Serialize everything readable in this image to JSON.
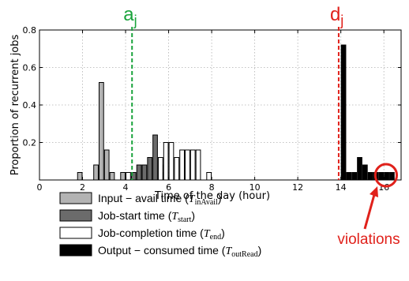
{
  "chart_data": {
    "type": "bar",
    "xlabel": "Time of the day (hour)",
    "ylabel": "Proportion of recurrent jobs",
    "xlim": [
      0,
      16.8
    ],
    "ylim": [
      0,
      0.8
    ],
    "xticks": [
      0,
      2,
      4,
      6,
      8,
      10,
      12,
      14,
      16
    ],
    "yticks": [
      0.2,
      0.4,
      0.6,
      0.8
    ],
    "grid": true,
    "bin_width": 0.25,
    "series": [
      {
        "name": "Input − avail time (T_inAvail)",
        "color": "#b3b3b3",
        "x": [
          1.875,
          2.625,
          2.875,
          3.125,
          3.375,
          3.875
        ],
        "values": [
          0.04,
          0.08,
          0.52,
          0.16,
          0.04,
          0.04
        ]
      },
      {
        "name": "Job-start time (T_start)",
        "color": "#6b6b6b",
        "x": [
          4.375,
          4.625,
          4.875,
          5.125,
          5.375,
          5.625,
          5.875
        ],
        "values": [
          0.04,
          0.08,
          0.08,
          0.12,
          0.24,
          0.08,
          0.04
        ]
      },
      {
        "name": "Job-completion time (T_end)",
        "color": "#ffffff",
        "x": [
          4.125,
          5.625,
          5.875,
          6.125,
          6.375,
          6.625,
          6.875,
          7.125,
          7.375,
          7.875
        ],
        "values": [
          0.04,
          0.12,
          0.2,
          0.2,
          0.12,
          0.16,
          0.16,
          0.16,
          0.16,
          0.04
        ]
      },
      {
        "name": "Output − consumed time (T_outRead)",
        "color": "#000000",
        "x": [
          14.125,
          14.375,
          14.625,
          14.875,
          15.125,
          15.375,
          15.625,
          15.875,
          16.125,
          16.375
        ],
        "values": [
          0.72,
          0.04,
          0.04,
          0.12,
          0.08,
          0.04,
          0.04,
          0.04,
          0.04,
          0.04
        ]
      }
    ],
    "annotations": {
      "aj": {
        "label": "aj",
        "x": 4.3,
        "color": "#1aa33c"
      },
      "dj": {
        "label": "dj",
        "x": 13.9,
        "color": "#e0211b"
      },
      "violations": {
        "label": "violations",
        "color": "#e0211b",
        "highlight_x": [
          15.6,
          16.6
        ]
      }
    }
  },
  "legend": [
    {
      "text_main": "Input − avail time (",
      "sym": "T",
      "sub": "inAvail",
      "close": ")",
      "color": "#b3b3b3"
    },
    {
      "text_main": "Job-start time (",
      "sym": "T",
      "sub": "start",
      "close": ")",
      "color": "#6b6b6b"
    },
    {
      "text_main": "Job-completion time (",
      "sym": "T",
      "sub": "end",
      "close": ")",
      "color": "#ffffff"
    },
    {
      "text_main": "Output − consumed time (",
      "sym": "T",
      "sub": "outRead",
      "close": ")",
      "color": "#000000"
    }
  ]
}
